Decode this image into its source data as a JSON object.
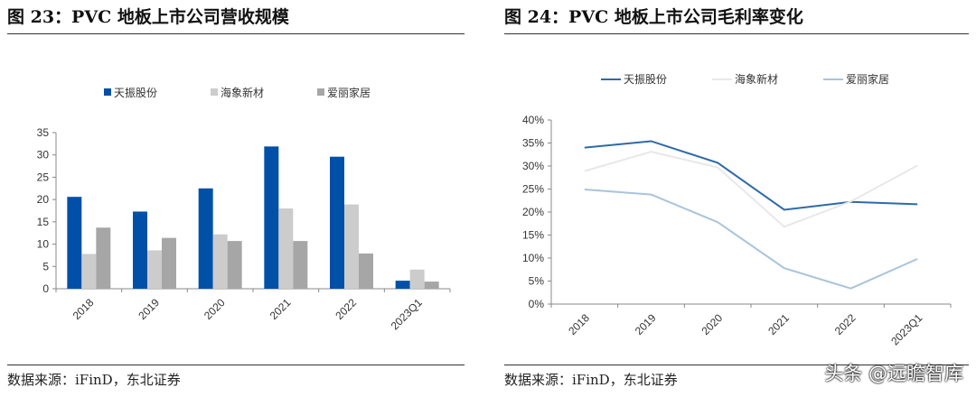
{
  "left": {
    "title": "图 23：PVC 地板上市公司营收规模",
    "source": "数据来源：iFinD，东北证券"
  },
  "right": {
    "title": "图 24：PVC 地板上市公司毛利率变化",
    "source": "数据来源：iFinD，东北证券"
  },
  "watermark": "头条 @远瞻智库",
  "chart_data": [
    {
      "type": "bar",
      "categories": [
        "2018",
        "2019",
        "2020",
        "2021",
        "2022",
        "2023Q1"
      ],
      "ylim": [
        0,
        35
      ],
      "yticks": [
        0,
        5,
        10,
        15,
        20,
        25,
        30,
        35
      ],
      "legend": "top",
      "grid": false,
      "series": [
        {
          "name": "天振股份",
          "color": "#0050a8",
          "values": [
            20.6,
            17.3,
            22.5,
            31.9,
            29.6,
            1.8
          ]
        },
        {
          "name": "海象新材",
          "color": "#cccccc",
          "values": [
            7.8,
            8.6,
            12.2,
            18.0,
            18.9,
            4.3
          ]
        },
        {
          "name": "爱丽家居",
          "color": "#a6a6a6",
          "values": [
            13.7,
            11.4,
            10.7,
            10.7,
            7.9,
            1.6
          ]
        }
      ]
    },
    {
      "type": "line",
      "categories": [
        "2018",
        "2019",
        "2020",
        "2021",
        "2022",
        "2023Q1"
      ],
      "ylim": [
        0,
        40
      ],
      "yticks": [
        "0%",
        "5%",
        "10%",
        "15%",
        "20%",
        "25%",
        "30%",
        "35%",
        "40%"
      ],
      "legend": "top",
      "grid": false,
      "series": [
        {
          "name": "天振股份",
          "color": "#2e6aa8",
          "values": [
            34.0,
            35.4,
            30.7,
            20.5,
            22.2,
            21.7
          ]
        },
        {
          "name": "海象新材",
          "color": "#e8e8e8",
          "values": [
            28.9,
            33.1,
            29.7,
            16.8,
            22.3,
            30.1
          ]
        },
        {
          "name": "爱丽家居",
          "color": "#a8c4dc",
          "values": [
            24.9,
            23.8,
            17.8,
            7.8,
            3.4,
            9.8
          ]
        }
      ]
    }
  ]
}
